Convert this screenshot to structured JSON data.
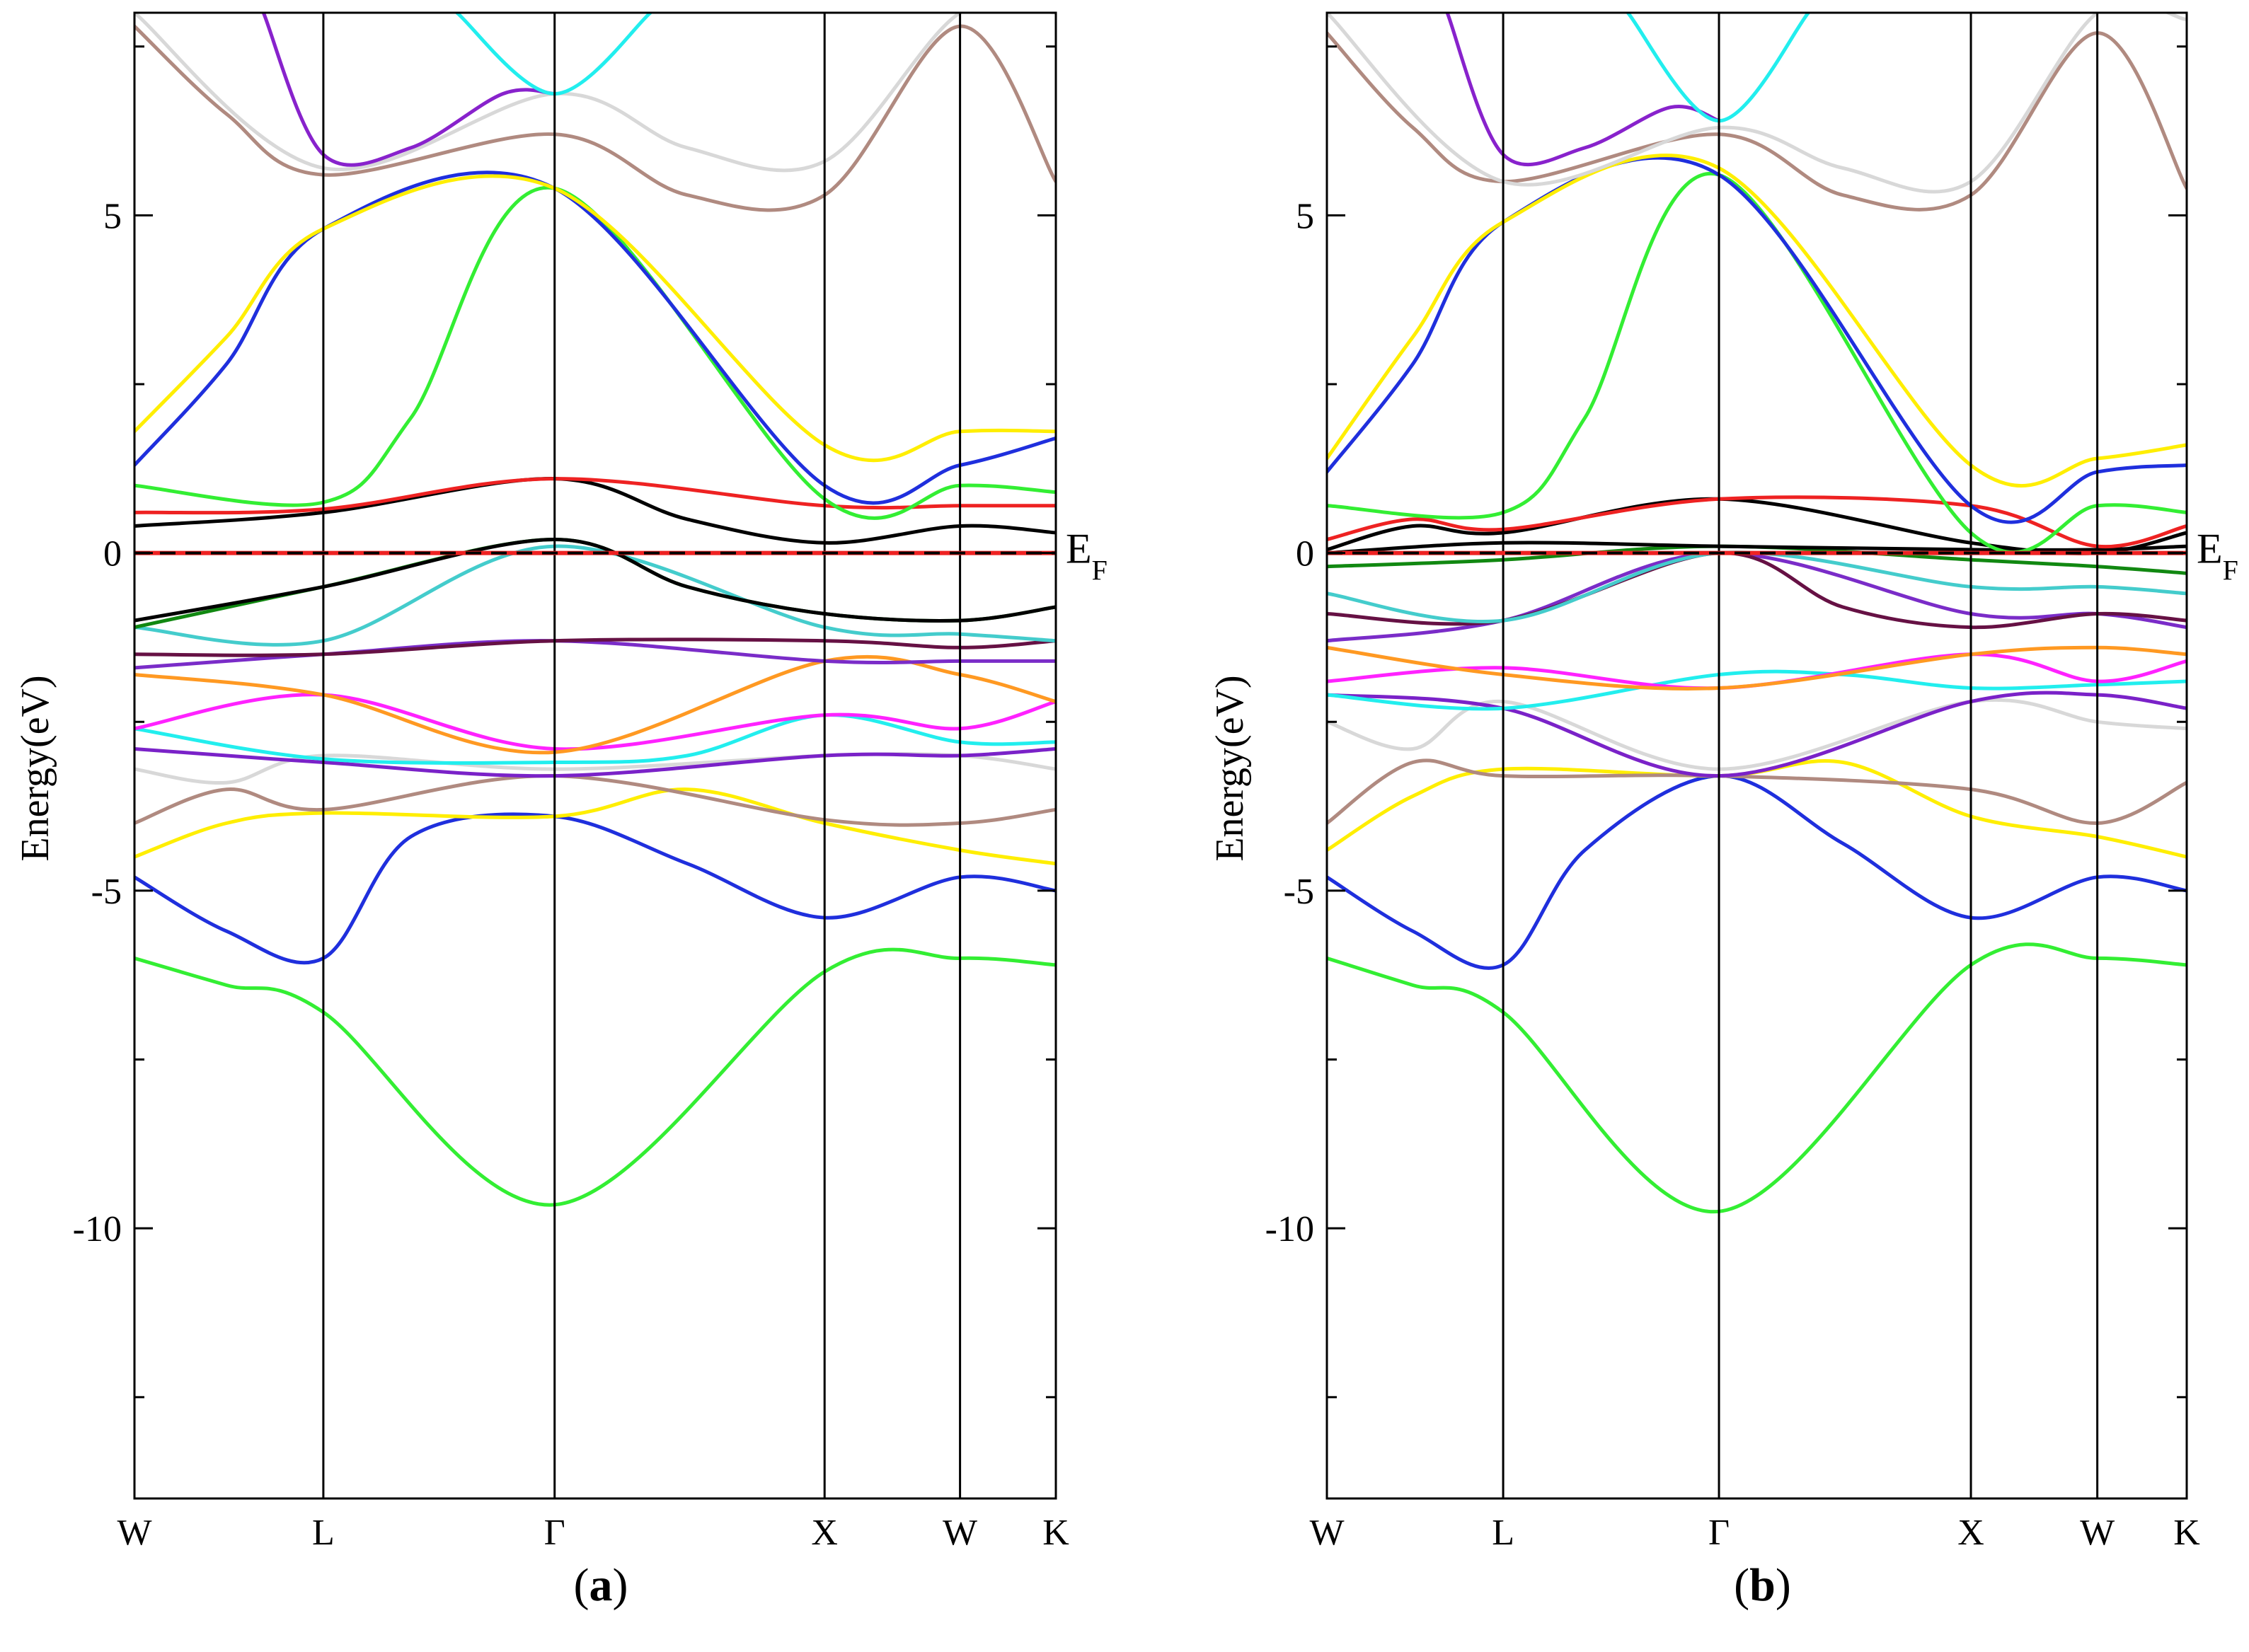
{
  "figure": {
    "panels": [
      "a",
      "b"
    ]
  },
  "chart_data": [
    {
      "type": "line",
      "panel_label": {
        "open": "(",
        "letter": "a",
        "close": ")"
      },
      "ylabel": "Energy(eV)",
      "fermi_label": {
        "main": "E",
        "sub": "F"
      },
      "ylim": [
        -14,
        8
      ],
      "yticks": [
        {
          "value": 5,
          "label": "5"
        },
        {
          "value": 0,
          "label": "0"
        },
        {
          "value": -5,
          "label": "-5"
        },
        {
          "value": -10,
          "label": "-10"
        }
      ],
      "kpoints": [
        {
          "pos": 0,
          "label": "W"
        },
        {
          "pos": 0.205,
          "label": "L"
        },
        {
          "pos": 0.456,
          "label": "Γ"
        },
        {
          "pos": 0.749,
          "label": "X"
        },
        {
          "pos": 0.896,
          "label": "W"
        },
        {
          "pos": 1.0,
          "label": "K"
        }
      ],
      "fermi_level": 0,
      "series": [
        {
          "name": "band-1",
          "color": "#33ee33",
          "x": [
            0,
            0.1,
            0.205,
            0.456,
            0.749,
            0.896,
            1.0
          ],
          "y": [
            -6.0,
            -6.4,
            -6.8,
            -9.65,
            -6.2,
            -6.0,
            -6.1
          ]
        },
        {
          "name": "band-2",
          "color": "#1f2fdd",
          "x": [
            0,
            0.1,
            0.205,
            0.3,
            0.456,
            0.6,
            0.749,
            0.896,
            1.0
          ],
          "y": [
            -4.8,
            -5.6,
            -6.0,
            -4.2,
            -3.9,
            -4.6,
            -5.4,
            -4.8,
            -5.0
          ]
        },
        {
          "name": "band-3",
          "color": "#ffee00",
          "x": [
            0,
            0.1,
            0.205,
            0.456,
            0.6,
            0.749,
            0.896,
            1.0
          ],
          "y": [
            -4.5,
            -4.0,
            -3.85,
            -3.9,
            -3.5,
            -4.0,
            -4.4,
            -4.6
          ]
        },
        {
          "name": "band-4",
          "color": "#b08a80",
          "x": [
            0,
            0.1,
            0.205,
            0.456,
            0.749,
            0.896,
            1.0
          ],
          "y": [
            -4.0,
            -3.5,
            -3.8,
            -3.3,
            -3.95,
            -4.0,
            -3.8
          ]
        },
        {
          "name": "band-5",
          "color": "#d8d8d8",
          "x": [
            0,
            0.1,
            0.205,
            0.456,
            0.749,
            0.896,
            1.0
          ],
          "y": [
            -3.2,
            -3.4,
            -3.0,
            -3.2,
            -3.0,
            -3.0,
            -3.2
          ]
        },
        {
          "name": "band-6",
          "color": "#7a22c8",
          "x": [
            0,
            0.205,
            0.456,
            0.749,
            0.896,
            1.0
          ],
          "y": [
            -2.9,
            -3.1,
            -3.3,
            -3.0,
            -3.0,
            -2.9
          ]
        },
        {
          "name": "band-7",
          "color": "#22eeee",
          "x": [
            0,
            0.205,
            0.456,
            0.6,
            0.749,
            0.896,
            1.0
          ],
          "y": [
            -2.6,
            -3.05,
            -3.1,
            -3.0,
            -2.4,
            -2.8,
            -2.8
          ]
        },
        {
          "name": "band-8",
          "color": "#ff22ff",
          "x": [
            0,
            0.205,
            0.456,
            0.749,
            0.896,
            1.0
          ],
          "y": [
            -2.6,
            -2.1,
            -2.9,
            -2.4,
            -2.6,
            -2.2
          ]
        },
        {
          "name": "band-9",
          "color": "#ff9922",
          "x": [
            0,
            0.205,
            0.456,
            0.749,
            0.896,
            1.0
          ],
          "y": [
            -1.8,
            -2.1,
            -2.95,
            -1.6,
            -1.8,
            -2.2
          ]
        },
        {
          "name": "band-10",
          "color": "#7a2cc8",
          "x": [
            0,
            0.205,
            0.456,
            0.749,
            0.896,
            1.0
          ],
          "y": [
            -1.7,
            -1.5,
            -1.3,
            -1.6,
            -1.6,
            -1.6
          ]
        },
        {
          "name": "band-11",
          "color": "#661144",
          "x": [
            0,
            0.205,
            0.456,
            0.749,
            0.896,
            1.0
          ],
          "y": [
            -1.5,
            -1.5,
            -1.3,
            -1.3,
            -1.4,
            -1.3
          ]
        },
        {
          "name": "band-12",
          "color": "#44cccc",
          "x": [
            0,
            0.205,
            0.456,
            0.749,
            0.896,
            1.0
          ],
          "y": [
            -1.1,
            -1.3,
            0.1,
            -1.1,
            -1.2,
            -1.3
          ]
        },
        {
          "name": "band-13",
          "color": "#118811",
          "x": [
            0,
            0.205,
            0.456,
            0.6,
            0.749,
            0.896,
            1.0
          ],
          "y": [
            -1.1,
            -0.5,
            0.2,
            -0.5,
            -0.9,
            -1.0,
            -0.8
          ]
        },
        {
          "name": "band-14",
          "color": "#000000",
          "x": [
            0,
            0.205,
            0.456,
            0.6,
            0.749,
            0.896,
            1.0
          ],
          "y": [
            -1.0,
            -0.5,
            0.2,
            -0.5,
            -0.9,
            -1.0,
            -0.8
          ]
        },
        {
          "name": "band-15",
          "color": "#000000",
          "x": [
            0,
            0.205,
            0.456,
            0.6,
            0.749,
            0.896,
            1.0
          ],
          "y": [
            0.4,
            0.6,
            1.1,
            0.5,
            0.15,
            0.4,
            0.3
          ]
        },
        {
          "name": "band-16",
          "color": "#ee2222",
          "x": [
            0,
            0.205,
            0.456,
            0.749,
            0.896,
            1.0
          ],
          "y": [
            0.6,
            0.65,
            1.1,
            0.7,
            0.7,
            0.7
          ]
        },
        {
          "name": "band-17",
          "color": "#33ee33",
          "x": [
            0,
            0.205,
            0.3,
            0.456,
            0.749,
            0.896,
            1.0
          ],
          "y": [
            1.0,
            0.75,
            2.0,
            5.4,
            0.8,
            1.0,
            0.9
          ]
        },
        {
          "name": "band-18",
          "color": "#1f2fdd",
          "x": [
            0,
            0.1,
            0.205,
            0.456,
            0.749,
            0.896,
            1.0
          ],
          "y": [
            1.3,
            2.8,
            4.8,
            5.4,
            1.0,
            1.3,
            1.7
          ]
        },
        {
          "name": "band-19",
          "color": "#ffee00",
          "x": [
            0,
            0.1,
            0.205,
            0.456,
            0.749,
            0.896,
            1.0
          ],
          "y": [
            1.8,
            3.2,
            4.8,
            5.4,
            1.6,
            1.8,
            1.8
          ]
        },
        {
          "name": "band-20",
          "color": "#b08a80",
          "x": [
            0,
            0.1,
            0.205,
            0.456,
            0.6,
            0.749,
            0.896,
            1.0
          ],
          "y": [
            7.8,
            6.5,
            5.6,
            6.2,
            5.3,
            5.3,
            7.8,
            5.5
          ]
        },
        {
          "name": "band-21",
          "color": "#d8d8d8",
          "x": [
            0,
            0.205,
            0.456,
            0.6,
            0.749,
            0.896,
            1.0
          ],
          "y": [
            8.0,
            5.7,
            6.8,
            6.0,
            5.8,
            8.0,
            8.0
          ]
        },
        {
          "name": "band-22",
          "color": "#8822cc",
          "x": [
            0.14,
            0.205,
            0.3,
            0.4,
            0.456
          ],
          "y": [
            8.0,
            5.9,
            6.0,
            6.8,
            6.8
          ]
        },
        {
          "name": "band-23",
          "color": "#22eeee",
          "x": [
            0.35,
            0.456,
            0.56
          ],
          "y": [
            8.0,
            6.8,
            8.0
          ]
        }
      ]
    },
    {
      "type": "line",
      "panel_label": {
        "open": "(",
        "letter": "b",
        "close": ")"
      },
      "ylabel": "Energy(eV)",
      "fermi_label": {
        "main": "E",
        "sub": "F"
      },
      "ylim": [
        -14,
        8
      ],
      "yticks": [
        {
          "value": 5,
          "label": "5"
        },
        {
          "value": 0,
          "label": "0"
        },
        {
          "value": -5,
          "label": "-5"
        },
        {
          "value": -10,
          "label": "-10"
        }
      ],
      "kpoints": [
        {
          "pos": 0,
          "label": "W"
        },
        {
          "pos": 0.205,
          "label": "L"
        },
        {
          "pos": 0.456,
          "label": "Γ"
        },
        {
          "pos": 0.749,
          "label": "X"
        },
        {
          "pos": 0.896,
          "label": "W"
        },
        {
          "pos": 1.0,
          "label": "K"
        }
      ],
      "fermi_level": 0,
      "series": [
        {
          "name": "band-1",
          "color": "#33ee33",
          "x": [
            0,
            0.1,
            0.205,
            0.456,
            0.749,
            0.896,
            1.0
          ],
          "y": [
            -6.0,
            -6.4,
            -6.8,
            -9.75,
            -6.1,
            -6.0,
            -6.1
          ]
        },
        {
          "name": "band-2",
          "color": "#1f2fdd",
          "x": [
            0,
            0.1,
            0.205,
            0.3,
            0.456,
            0.6,
            0.749,
            0.896,
            1.0
          ],
          "y": [
            -4.8,
            -5.6,
            -6.1,
            -4.4,
            -3.3,
            -4.3,
            -5.4,
            -4.8,
            -5.0
          ]
        },
        {
          "name": "band-3",
          "color": "#ffee00",
          "x": [
            0,
            0.1,
            0.205,
            0.456,
            0.6,
            0.749,
            0.896,
            1.0
          ],
          "y": [
            -4.4,
            -3.6,
            -3.2,
            -3.3,
            -3.1,
            -3.9,
            -4.2,
            -4.5
          ]
        },
        {
          "name": "band-4",
          "color": "#b08a80",
          "x": [
            0,
            0.1,
            0.205,
            0.456,
            0.749,
            0.896,
            1.0
          ],
          "y": [
            -4.0,
            -3.1,
            -3.3,
            -3.3,
            -3.5,
            -4.0,
            -3.4
          ]
        },
        {
          "name": "band-5",
          "color": "#d8d8d8",
          "x": [
            0,
            0.1,
            0.205,
            0.456,
            0.749,
            0.896,
            1.0
          ],
          "y": [
            -2.5,
            -2.9,
            -2.2,
            -3.2,
            -2.2,
            -2.5,
            -2.6
          ]
        },
        {
          "name": "band-6",
          "color": "#7a22c8",
          "x": [
            0,
            0.205,
            0.456,
            0.749,
            0.896,
            1.0
          ],
          "y": [
            -2.1,
            -2.3,
            -3.3,
            -2.2,
            -2.1,
            -2.3
          ]
        },
        {
          "name": "band-7",
          "color": "#22eeee",
          "x": [
            0,
            0.205,
            0.456,
            0.6,
            0.749,
            0.896,
            1.0
          ],
          "y": [
            -2.1,
            -2.3,
            -1.8,
            -1.8,
            -2.0,
            -1.95,
            -1.9
          ]
        },
        {
          "name": "band-8",
          "color": "#ff22ff",
          "x": [
            0,
            0.205,
            0.456,
            0.749,
            0.896,
            1.0
          ],
          "y": [
            -1.9,
            -1.7,
            -2.0,
            -1.5,
            -1.9,
            -1.6
          ]
        },
        {
          "name": "band-9",
          "color": "#ff9922",
          "x": [
            0,
            0.205,
            0.456,
            0.749,
            0.896,
            1.0
          ],
          "y": [
            -1.4,
            -1.8,
            -2.0,
            -1.5,
            -1.4,
            -1.5
          ]
        },
        {
          "name": "band-10",
          "color": "#7a2cc8",
          "x": [
            0,
            0.205,
            0.456,
            0.749,
            0.896,
            1.0
          ],
          "y": [
            -1.3,
            -1.0,
            0.0,
            -0.9,
            -0.9,
            -1.1
          ]
        },
        {
          "name": "band-11",
          "color": "#661144",
          "x": [
            0,
            0.205,
            0.456,
            0.6,
            0.749,
            0.896,
            1.0
          ],
          "y": [
            -0.9,
            -1.0,
            0.0,
            -0.8,
            -1.1,
            -0.9,
            -1.0
          ]
        },
        {
          "name": "band-12",
          "color": "#44cccc",
          "x": [
            0,
            0.205,
            0.456,
            0.749,
            0.896,
            1.0
          ],
          "y": [
            -0.6,
            -1.0,
            0.0,
            -0.5,
            -0.5,
            -0.6
          ]
        },
        {
          "name": "band-13",
          "color": "#118811",
          "x": [
            0,
            0.205,
            0.456,
            0.749,
            0.896,
            1.0
          ],
          "y": [
            -0.2,
            -0.1,
            0.1,
            -0.1,
            -0.2,
            -0.3
          ]
        },
        {
          "name": "band-14",
          "color": "#000000",
          "x": [
            0,
            0.205,
            0.456,
            0.749,
            0.896,
            1.0
          ],
          "y": [
            0.0,
            0.15,
            0.1,
            0.05,
            0.05,
            0.1
          ]
        },
        {
          "name": "band-15",
          "color": "#000000",
          "x": [
            0,
            0.1,
            0.205,
            0.456,
            0.749,
            0.896,
            1.0
          ],
          "y": [
            0.05,
            0.4,
            0.3,
            0.8,
            0.15,
            0.0,
            0.3
          ]
        },
        {
          "name": "band-16",
          "color": "#ee2222",
          "x": [
            0,
            0.1,
            0.205,
            0.456,
            0.749,
            0.896,
            1.0
          ],
          "y": [
            0.2,
            0.5,
            0.35,
            0.8,
            0.7,
            0.1,
            0.4
          ]
        },
        {
          "name": "band-17",
          "color": "#33ee33",
          "x": [
            0,
            0.205,
            0.3,
            0.456,
            0.749,
            0.896,
            1.0
          ],
          "y": [
            0.7,
            0.6,
            2.0,
            5.6,
            0.3,
            0.7,
            0.6
          ]
        },
        {
          "name": "band-18",
          "color": "#1f2fdd",
          "x": [
            0,
            0.1,
            0.205,
            0.456,
            0.749,
            0.896,
            1.0
          ],
          "y": [
            1.2,
            2.8,
            4.9,
            5.6,
            0.7,
            1.2,
            1.3
          ]
        },
        {
          "name": "band-19",
          "color": "#ffee00",
          "x": [
            0,
            0.1,
            0.205,
            0.456,
            0.749,
            0.896,
            1.0
          ],
          "y": [
            1.4,
            3.2,
            4.9,
            5.7,
            1.3,
            1.4,
            1.6
          ]
        },
        {
          "name": "band-20",
          "color": "#b08a80",
          "x": [
            0,
            0.1,
            0.205,
            0.456,
            0.6,
            0.749,
            0.896,
            1.0
          ],
          "y": [
            7.7,
            6.3,
            5.5,
            6.2,
            5.3,
            5.3,
            7.7,
            5.4
          ]
        },
        {
          "name": "band-21",
          "color": "#d8d8d8",
          "x": [
            0,
            0.205,
            0.456,
            0.6,
            0.749,
            0.896,
            1.0
          ],
          "y": [
            8.0,
            5.5,
            6.3,
            5.7,
            5.5,
            8.0,
            7.9
          ]
        },
        {
          "name": "band-22",
          "color": "#8822cc",
          "x": [
            0.14,
            0.205,
            0.3,
            0.4,
            0.456
          ],
          "y": [
            8.0,
            5.9,
            6.0,
            6.6,
            6.4
          ]
        },
        {
          "name": "band-23",
          "color": "#22eeee",
          "x": [
            0.35,
            0.456,
            0.56
          ],
          "y": [
            8.0,
            6.4,
            8.0
          ]
        }
      ]
    }
  ]
}
